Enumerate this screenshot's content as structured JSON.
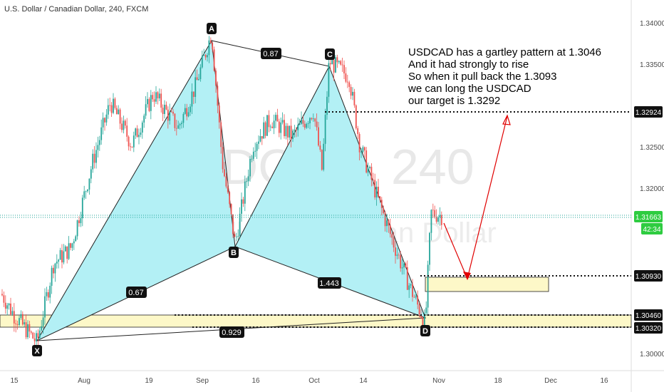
{
  "header": {
    "title": "U.S. Dollar / Canadian Dollar, 240, FXCM"
  },
  "watermark": {
    "symbol": "USDCAD, 240",
    "name": "U.S. Dollar / Canadian Dollar"
  },
  "annotation": {
    "lines": [
      "USDCAD has a gartley pattern at 1.3046",
      "And it had strongly to rise",
      "So when it pull back the 1.3093",
      "we can long the USDCAD",
      "our target is 1.3292"
    ]
  },
  "colors": {
    "pattern_fill": "#b3f0f5",
    "zone_fill": "#fdf8c8",
    "bull": "#26a69a",
    "bear": "#ef5350",
    "arrow": "#e00000",
    "price_badge": "#2ecc40"
  },
  "chart_data": {
    "type": "candlestick",
    "title": "U.S. Dollar / Canadian Dollar, 240, FXCM",
    "ylim": [
      1.2985,
      1.342
    ],
    "y_ticks": [
      "1.34000",
      "1.33500",
      "1.32500",
      "1.32000",
      "1.30000"
    ],
    "x_ticks": [
      "15",
      "Aug",
      "19",
      "Sep",
      "16",
      "Oct",
      "14",
      "Nov",
      "18",
      "Dec",
      "16"
    ],
    "price_path": [
      {
        "t": 0,
        "p": 1.3075
      },
      {
        "t": 0.06,
        "p": 1.3045
      },
      {
        "t": 0.1,
        "p": 1.3035
      },
      {
        "t": 0.15,
        "p": 1.311
      },
      {
        "t": 0.21,
        "p": 1.315
      },
      {
        "t": 0.27,
        "p": 1.3255
      },
      {
        "t": 0.31,
        "p": 1.33
      },
      {
        "t": 0.36,
        "p": 1.3255
      },
      {
        "t": 0.41,
        "p": 1.3285
      },
      {
        "t": 0.47,
        "p": 1.33
      },
      {
        "t": 0.51,
        "p": 1.327
      },
      {
        "t": 0.57,
        "p": 1.3335
      },
      {
        "t": 0.61,
        "p": 1.337
      },
      {
        "t": 0.66,
        "p": 1.338
      },
      {
        "t": 0.7,
        "p": 1.33
      },
      {
        "t": 0.74,
        "p": 1.322
      },
      {
        "t": 0.77,
        "p": 1.316
      },
      {
        "t": 0.81,
        "p": 1.32
      },
      {
        "t": 0.85,
        "p": 1.325
      },
      {
        "t": 0.89,
        "p": 1.328
      },
      {
        "t": 0.93,
        "p": 1.326
      },
      {
        "t": 0.97,
        "p": 1.32
      },
      {
        "t": 1.0,
        "p": 1.323
      }
    ],
    "segments": [
      {
        "from": "X",
        "to": "A"
      },
      {
        "from": "A",
        "to": "B"
      },
      {
        "from": "B",
        "to": "C"
      },
      {
        "from": "C",
        "to": "D"
      }
    ],
    "pattern_points": [
      {
        "name": "X",
        "date": "Jul 22",
        "price": 1.3018
      },
      {
        "name": "A",
        "date": "Sep 1",
        "price": 1.3382
      },
      {
        "name": "B",
        "date": "Sep 13",
        "price": 1.3134
      },
      {
        "name": "C",
        "date": "Oct 4",
        "price": 1.3348
      },
      {
        "name": "D",
        "date": "Oct 30",
        "price": 1.304
      }
    ],
    "ratios": [
      {
        "label": "0.87",
        "between": [
          "A",
          "C"
        ]
      },
      {
        "label": "0.67",
        "between": [
          "X",
          "B"
        ]
      },
      {
        "label": "1.443",
        "between": [
          "B",
          "D"
        ]
      },
      {
        "label": "0.929",
        "between": [
          "X",
          "D"
        ]
      }
    ],
    "levels": [
      {
        "label": "1.32924",
        "price": 1.32924,
        "style": "dotted"
      },
      {
        "label": "1.31663",
        "price": 1.31663,
        "style": "current"
      },
      {
        "label": "1.30930",
        "price": 1.3093,
        "style": "dotted"
      },
      {
        "label": "1.30460",
        "price": 1.3046,
        "style": "dotted"
      },
      {
        "label": "1.30320",
        "price": 1.3032,
        "style": "dotted"
      }
    ],
    "countdown": "42:34",
    "zones": [
      {
        "name": "entry-zone",
        "from_price": 1.3072,
        "to_price": 1.3092
      },
      {
        "name": "d-zone",
        "from_price": 1.3032,
        "to_price": 1.3046
      }
    ]
  }
}
